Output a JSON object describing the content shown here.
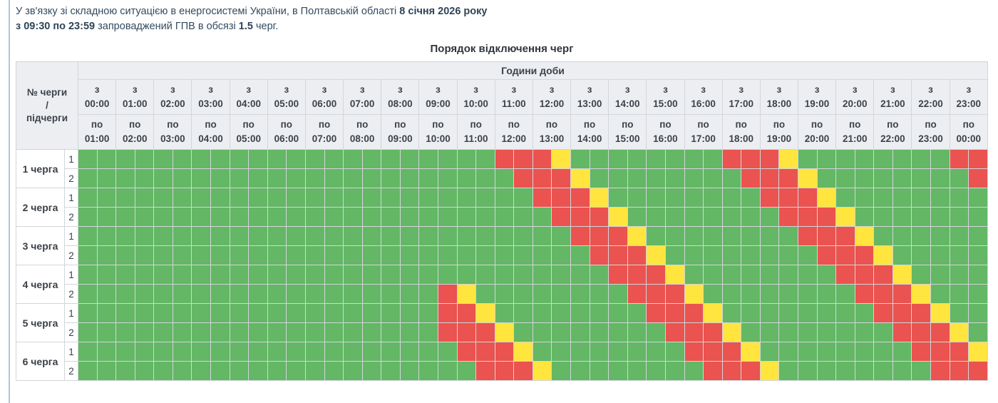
{
  "intro": {
    "text_before_date": "У зв'язку зі складною ситуацією в енергосистемі України, в Полтавській області ",
    "date": "8 січня 2026 року",
    "time_range": "з 09:30 по 23:59",
    "text_middle": " запроваджений ГПВ в обсязі ",
    "amount": "1.5",
    "text_after": " черг."
  },
  "table": {
    "title": "Порядок відключення черг",
    "corner_lines": [
      "№ черги",
      "/",
      "підчерги"
    ],
    "hours_group_label": "Години доби",
    "from_word": "з",
    "to_word": "по",
    "slots_per_hour": 2,
    "hours": [
      {
        "from": "00:00",
        "to": "01:00"
      },
      {
        "from": "01:00",
        "to": "02:00"
      },
      {
        "from": "02:00",
        "to": "03:00"
      },
      {
        "from": "03:00",
        "to": "04:00"
      },
      {
        "from": "04:00",
        "to": "05:00"
      },
      {
        "from": "05:00",
        "to": "06:00"
      },
      {
        "from": "06:00",
        "to": "07:00"
      },
      {
        "from": "07:00",
        "to": "08:00"
      },
      {
        "from": "08:00",
        "to": "09:00"
      },
      {
        "from": "09:00",
        "to": "10:00"
      },
      {
        "from": "10:00",
        "to": "11:00"
      },
      {
        "from": "11:00",
        "to": "12:00"
      },
      {
        "from": "12:00",
        "to": "13:00"
      },
      {
        "from": "13:00",
        "to": "14:00"
      },
      {
        "from": "14:00",
        "to": "15:00"
      },
      {
        "from": "15:00",
        "to": "16:00"
      },
      {
        "from": "16:00",
        "to": "17:00"
      },
      {
        "from": "17:00",
        "to": "18:00"
      },
      {
        "from": "18:00",
        "to": "19:00"
      },
      {
        "from": "19:00",
        "to": "20:00"
      },
      {
        "from": "20:00",
        "to": "21:00"
      },
      {
        "from": "21:00",
        "to": "22:00"
      },
      {
        "from": "22:00",
        "to": "23:00"
      },
      {
        "from": "23:00",
        "to": "00:00"
      }
    ],
    "queues": [
      {
        "label": "1 черга",
        "subqueues": [
          {
            "number": "1",
            "pattern": "GGGGGGGGGGGGGGGGGGGGGGRRRYGGGGGGGGRRRYGGGGGGGGRR"
          },
          {
            "number": "2",
            "pattern": "GGGGGGGGGGGGGGGGGGGGGGGRRRYGGGGGGGGRRRYGGGGGGGGR"
          }
        ]
      },
      {
        "label": "2 черга",
        "subqueues": [
          {
            "number": "1",
            "pattern": "GGGGGGGGGGGGGGGGGGGGGGGGRRRYGGGGGGGGRRRYGGGGGGGG"
          },
          {
            "number": "2",
            "pattern": "GGGGGGGGGGGGGGGGGGGGGGGGGRRRYGGGGGGGGRRRYGGGGGGG"
          }
        ]
      },
      {
        "label": "3 черга",
        "subqueues": [
          {
            "number": "1",
            "pattern": "GGGGGGGGGGGGGGGGGGGGGGGGGGRRRYGGGGGGGGRRRYGGGGGG"
          },
          {
            "number": "2",
            "pattern": "GGGGGGGGGGGGGGGGGGGGGGGGGGGRRRYGGGGGGGGRRRYGGGGG"
          }
        ]
      },
      {
        "label": "4 черга",
        "subqueues": [
          {
            "number": "1",
            "pattern": "GGGGGGGGGGGGGGGGGGGGGGGGGGGGRRRYGGGGGGGGRRRYGGGG"
          },
          {
            "number": "2",
            "pattern": "GGGGGGGGGGGGGGGGGGGRYGGGGGGGGRRRYGGGGGGGGRRRYGGG"
          }
        ]
      },
      {
        "label": "5 черга",
        "subqueues": [
          {
            "number": "1",
            "pattern": "GGGGGGGGGGGGGGGGGGGRRYGGGGGGGGRRRYGGGGGGGGRRRYGG"
          },
          {
            "number": "2",
            "pattern": "GGGGGGGGGGGGGGGGGGGRRRYGGGGGGGGRRRYGGGGGGGGRRRYG"
          }
        ]
      },
      {
        "label": "6 черга",
        "subqueues": [
          {
            "number": "1",
            "pattern": "GGGGGGGGGGGGGGGGGGGGRRRYGGGGGGGGRRRYGGGGGGGGRRRY"
          },
          {
            "number": "2",
            "pattern": "GGGGGGGGGGGGGGGGGGGGGRRRYGGGGGGGGRRRYGGGGGGGGRRR"
          }
        ]
      }
    ]
  },
  "legend": {
    "colors": {
      "G": "#63b765",
      "R": "#ea534f",
      "Y": "#ffe53d"
    },
    "slot_names": {
      "G": "slot-power-on",
      "R": "slot-power-off",
      "Y": "slot-possible-outage"
    }
  }
}
